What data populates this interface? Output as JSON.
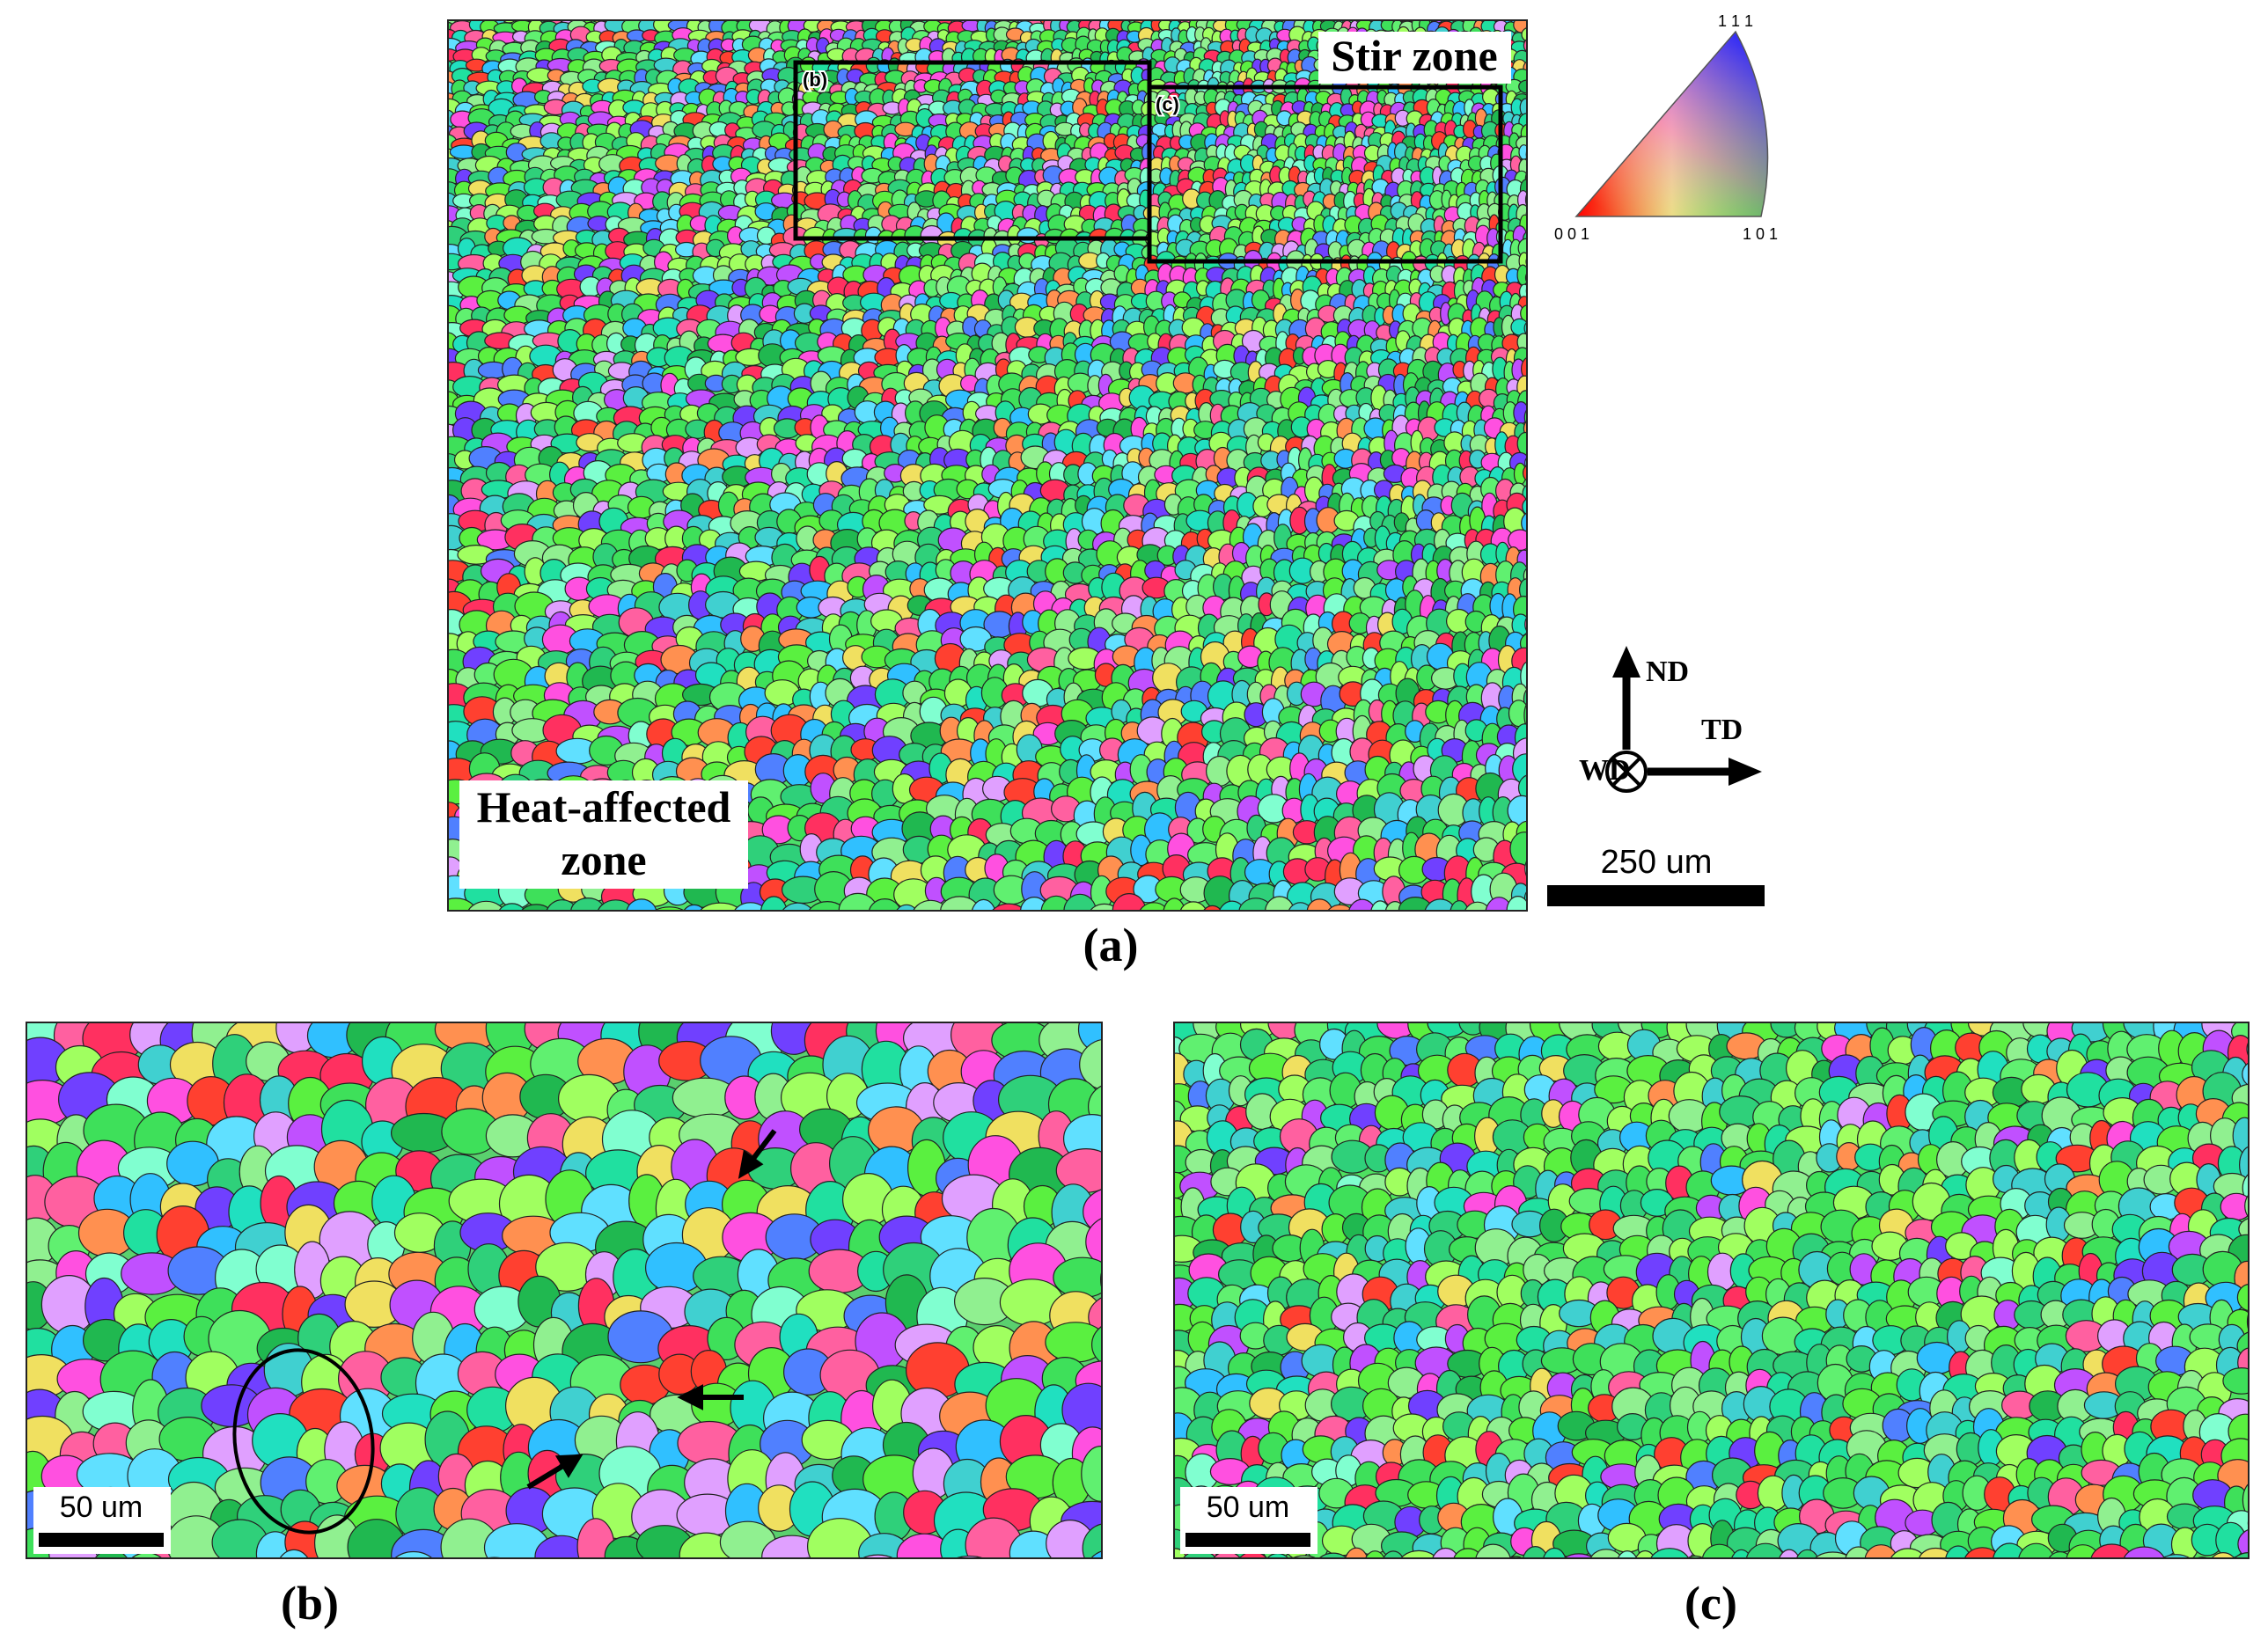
{
  "panel_a": {
    "label_stir": "Stir zone",
    "inset_b": "(b)",
    "inset_c": "(c)",
    "label_haz": [
      "Heat-affected",
      "zone"
    ],
    "ipf": {
      "top": "1 1 1",
      "left": "0 0 1",
      "right": "1 0 1"
    },
    "axes": {
      "nd": "ND",
      "td": "TD",
      "wd": "WD"
    },
    "scale_bar": "250 um",
    "caption": "(a)"
  },
  "panel_b": {
    "scale_bar": "50 um",
    "caption": "(b)"
  },
  "panel_c": {
    "scale_bar": "50 um",
    "caption": "(c)"
  }
}
